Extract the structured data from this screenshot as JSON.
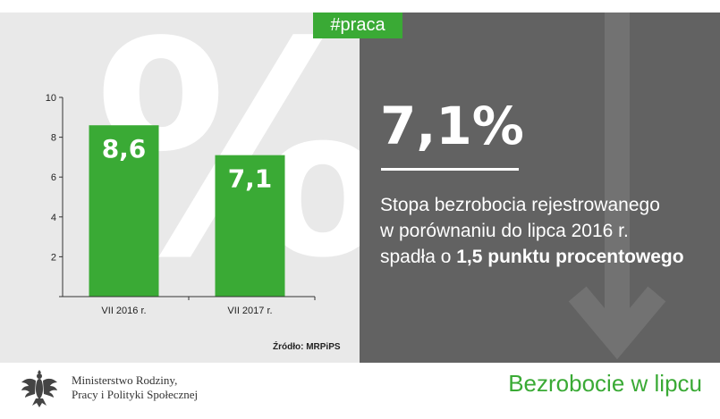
{
  "tag": "#praca",
  "background_symbol": "%",
  "headline_value": "7,1%",
  "description": {
    "line1": "Stopa bezrobocia rejestrowanego",
    "line2": "w porównaniu do lipca 2016 r.",
    "line3_prefix": "spadła o ",
    "line3_bold": "1,5 punktu procentowego"
  },
  "source": "Źródło: MRPiPS",
  "ministry": {
    "line1": "Ministerstwo Rodziny,",
    "line2": "Pracy i Polityki Społecznej"
  },
  "footer_title": "Bezrobocie w lipcu",
  "colors": {
    "accent": "#3aaa35",
    "panel_dark": "#626262",
    "panel_light": "#e9e9e9"
  },
  "chart_data": {
    "type": "bar",
    "categories": [
      "VII 2016 r.",
      "VII 2017 r."
    ],
    "values": [
      8.6,
      7.1
    ],
    "value_labels": [
      "8,6",
      "7,1"
    ],
    "yticks": [
      2,
      4,
      6,
      8,
      10
    ],
    "ylim": [
      0,
      10
    ],
    "grid": false,
    "legend": "none",
    "bar_color": "#3aaa35"
  }
}
